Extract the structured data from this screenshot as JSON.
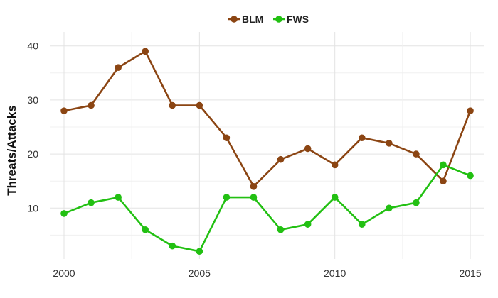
{
  "chart_data": {
    "type": "line",
    "title": "",
    "xlabel": "",
    "ylabel": "Threats/Attacks",
    "x": [
      2000,
      2001,
      2002,
      2003,
      2004,
      2005,
      2006,
      2007,
      2008,
      2009,
      2010,
      2011,
      2012,
      2013,
      2014,
      2015
    ],
    "xlim": [
      1999.5,
      2015.5
    ],
    "ylim": [
      0,
      41
    ],
    "x_ticks": [
      "2000",
      "2005",
      "2010",
      "2015"
    ],
    "y_ticks": [
      "10",
      "20",
      "30",
      "40"
    ],
    "legend_position": "top-center",
    "grid": true,
    "series": [
      {
        "name": "BLM",
        "color": "#8B4513",
        "values": [
          28,
          29,
          36,
          39,
          29,
          29,
          23,
          14,
          19,
          21,
          18,
          23,
          22,
          20,
          15,
          28
        ]
      },
      {
        "name": "FWS",
        "color": "#22C012",
        "values": [
          9,
          11,
          12,
          6,
          3,
          2,
          12,
          12,
          6,
          7,
          12,
          7,
          10,
          11,
          18,
          16
        ]
      }
    ]
  }
}
